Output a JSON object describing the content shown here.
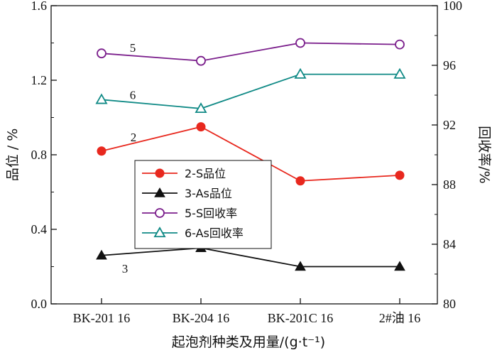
{
  "chart_data": {
    "type": "line",
    "categories": [
      "BK-201 16",
      "BK-204 16",
      "BK-201C 16",
      "2#油 16"
    ],
    "xlabel": "起泡剂种类及用量/(g·t⁻¹)",
    "ylabel_left": "品位 / %",
    "ylabel_right": "回收率/%",
    "ylim_left": [
      0.0,
      1.6
    ],
    "yticks_left": [
      "0.0",
      "0.4",
      "0.8",
      "1.2",
      "1.6"
    ],
    "ylim_right": [
      80,
      100
    ],
    "yticks_right": [
      "80",
      "84",
      "88",
      "92",
      "96",
      "100"
    ],
    "grid": false,
    "legend_position": "center-left",
    "series": [
      {
        "name": "2-S品位",
        "axis": "left",
        "values": [
          0.82,
          0.95,
          0.66,
          0.69
        ],
        "color": "#e8281e",
        "marker": "filled-circle",
        "annotation": "2"
      },
      {
        "name": "3-As品位",
        "axis": "left",
        "values": [
          0.26,
          0.3,
          0.2,
          0.2
        ],
        "color": "#111111",
        "marker": "filled-triangle",
        "annotation": "3"
      },
      {
        "name": "5-S回收率",
        "axis": "right",
        "values": [
          96.8,
          96.3,
          97.5,
          97.4
        ],
        "color": "#7b1f8c",
        "marker": "open-circle",
        "annotation": "5"
      },
      {
        "name": "6-As回收率",
        "axis": "right",
        "values": [
          93.7,
          93.1,
          95.4,
          95.4
        ],
        "color": "#108a86",
        "marker": "open-triangle",
        "annotation": "6"
      }
    ]
  }
}
